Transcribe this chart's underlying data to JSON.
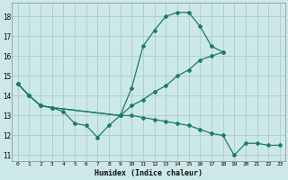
{
  "xlabel": "Humidex (Indice chaleur)",
  "bg_color": "#cce8e8",
  "grid_color": "#b0d0d0",
  "line_color": "#1a7a6e",
  "xlim": [
    -0.5,
    23.5
  ],
  "ylim": [
    10.7,
    18.7
  ],
  "xticks": [
    0,
    1,
    2,
    3,
    4,
    5,
    6,
    7,
    8,
    9,
    10,
    11,
    12,
    13,
    14,
    15,
    16,
    17,
    18,
    19,
    20,
    21,
    22,
    23
  ],
  "yticks": [
    11,
    12,
    13,
    14,
    15,
    16,
    17,
    18
  ],
  "line1_x": [
    0,
    1,
    2,
    3,
    4,
    5,
    6,
    7,
    8,
    9,
    10,
    11,
    12,
    13,
    14,
    15,
    16,
    17,
    18
  ],
  "line1_y": [
    14.6,
    14.0,
    13.5,
    13.4,
    13.2,
    12.6,
    12.5,
    11.9,
    12.5,
    13.0,
    14.4,
    16.5,
    17.3,
    18.0,
    18.2,
    18.2,
    17.5,
    16.5,
    16.2
  ],
  "line2_x": [
    0,
    1,
    2,
    3,
    9,
    10,
    11,
    12,
    13,
    14,
    15,
    16,
    17,
    18
  ],
  "line2_y": [
    14.6,
    14.0,
    13.5,
    13.4,
    13.0,
    13.5,
    13.8,
    14.2,
    14.5,
    15.0,
    15.3,
    15.8,
    16.0,
    16.2
  ],
  "line3_x": [
    0,
    1,
    2,
    3,
    9,
    10,
    11,
    12,
    13,
    14,
    15,
    16,
    17,
    18,
    19,
    20,
    21,
    22,
    23
  ],
  "line3_y": [
    14.6,
    14.0,
    13.5,
    13.4,
    13.0,
    13.0,
    12.9,
    12.8,
    12.7,
    12.6,
    12.5,
    12.3,
    12.1,
    12.0,
    11.0,
    11.6,
    11.6,
    11.5,
    11.5
  ]
}
